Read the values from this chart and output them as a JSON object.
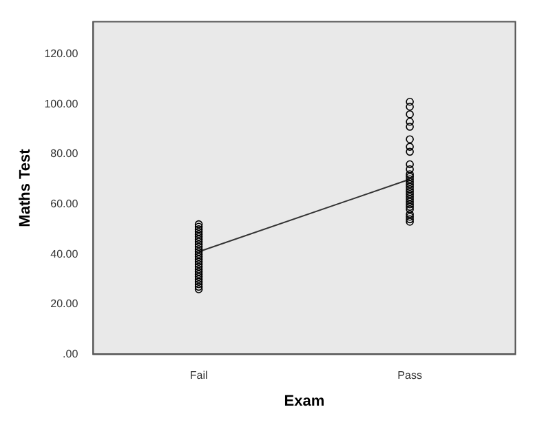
{
  "chart_data": {
    "type": "scatter",
    "xlabel": "Exam",
    "ylabel": "Maths Test",
    "categories": [
      "Fail",
      "Pass"
    ],
    "series": [
      {
        "marker": "circle",
        "color": "#000000",
        "x": [
          "Fail",
          "Fail",
          "Fail",
          "Fail",
          "Fail",
          "Fail",
          "Fail",
          "Fail",
          "Fail",
          "Fail",
          "Fail",
          "Fail",
          "Fail",
          "Fail",
          "Fail",
          "Fail",
          "Fail",
          "Fail",
          "Fail",
          "Fail",
          "Fail",
          "Fail",
          "Fail",
          "Fail",
          "Fail",
          "Fail",
          "Fail",
          "Pass",
          "Pass",
          "Pass",
          "Pass",
          "Pass",
          "Pass",
          "Pass",
          "Pass",
          "Pass",
          "Pass",
          "Pass",
          "Pass",
          "Pass",
          "Pass",
          "Pass",
          "Pass",
          "Pass",
          "Pass",
          "Pass",
          "Pass",
          "Pass",
          "Pass",
          "Pass",
          "Pass",
          "Pass",
          "Pass",
          "Pass",
          "Pass",
          "Pass"
        ],
        "values": [
          26,
          27,
          28,
          29,
          30,
          31,
          32,
          33,
          34,
          35,
          36,
          37,
          38,
          39,
          40,
          41,
          42,
          43,
          44,
          45,
          46,
          47,
          48,
          49,
          50,
          51,
          52,
          53,
          54,
          55,
          56,
          58,
          59,
          60,
          61,
          62,
          63,
          64,
          65,
          66,
          67,
          68,
          69,
          70,
          71,
          72,
          74,
          76,
          81,
          83,
          86,
          91,
          93,
          96,
          99,
          101
        ]
      },
      {
        "type": "line",
        "marker": "none",
        "color": "#333333",
        "values": [
          41,
          70
        ]
      }
    ],
    "ylim": [
      0,
      133
    ],
    "yticks": [
      {
        "value": 0,
        "label": ".00"
      },
      {
        "value": 20,
        "label": "20.00"
      },
      {
        "value": 40,
        "label": "40.00"
      },
      {
        "value": 60,
        "label": "60.00"
      },
      {
        "value": 80,
        "label": "80.00"
      },
      {
        "value": 100,
        "label": "100.00"
      },
      {
        "value": 120,
        "label": "120.00"
      }
    ],
    "grid": false,
    "legend": false
  }
}
